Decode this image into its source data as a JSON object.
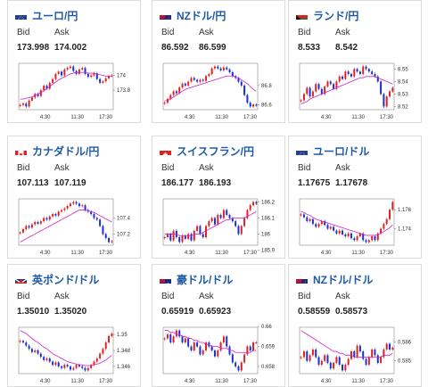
{
  "bid_label": "Bid",
  "ask_label": "Ask",
  "x_ticks": [
    "4:30",
    "11:30",
    "17:30"
  ],
  "colors": {
    "up": "#e02020",
    "down": "#1c2fd0",
    "ma": "#d020d0",
    "title": "#1f5aa6"
  },
  "cards": [
    {
      "name": "ユーロ/円",
      "flag": "eu-jp",
      "bid": "173.998",
      "ask": "174.002",
      "y_ticks": [
        "174",
        "173.8"
      ],
      "series": [
        173.6,
        173.62,
        173.58,
        173.66,
        173.7,
        173.75,
        173.72,
        173.8,
        173.86,
        173.82,
        173.9,
        173.95,
        174.02,
        174.05,
        174.0,
        174.08,
        174.1,
        174.12,
        174.06,
        174.02,
        174.08,
        174.1,
        174.02,
        173.98,
        174.0,
        174.03,
        173.95,
        173.9,
        173.92,
        173.96,
        173.99,
        174.0
      ],
      "ma": [
        173.68,
        173.68,
        173.69,
        173.7,
        173.71,
        173.73,
        173.75,
        173.77,
        173.79,
        173.82,
        173.85,
        173.88,
        173.91,
        173.94,
        173.96,
        173.98,
        174.0,
        174.02,
        174.03,
        174.04,
        174.04,
        174.04,
        174.04,
        174.03,
        174.03,
        174.03,
        174.02,
        174.01,
        174.0,
        173.99,
        173.99,
        173.99
      ]
    },
    {
      "name": "NZドル/円",
      "flag": "nz-jp",
      "bid": "86.592",
      "ask": "86.599",
      "y_ticks": [
        "86.8",
        "86.6"
      ],
      "series": [
        86.62,
        86.66,
        86.7,
        86.74,
        86.72,
        86.78,
        86.82,
        86.8,
        86.84,
        86.88,
        86.86,
        86.84,
        86.86,
        86.85,
        86.9,
        86.92,
        86.98,
        87.0,
        86.98,
        86.96,
        86.99,
        86.97,
        86.94,
        86.9,
        86.88,
        86.84,
        86.8,
        86.7,
        86.62,
        86.58,
        86.6,
        86.59
      ],
      "ma": [
        86.64,
        86.64,
        86.66,
        86.68,
        86.7,
        86.72,
        86.74,
        86.76,
        86.77,
        86.78,
        86.79,
        86.8,
        86.81,
        86.82,
        86.83,
        86.84,
        86.85,
        86.86,
        86.87,
        86.88,
        86.89,
        86.9,
        86.9,
        86.9,
        86.89,
        86.88,
        86.86,
        86.84,
        86.82,
        86.79,
        86.76,
        86.74
      ]
    },
    {
      "name": "ランド/円",
      "flag": "za-jp",
      "bid": "8.533",
      "ask": "8.542",
      "y_ticks": [
        "8.55",
        "8.54",
        "8.53",
        "8.52"
      ],
      "series": [
        8.525,
        8.53,
        8.535,
        8.528,
        8.532,
        8.538,
        8.534,
        8.53,
        8.536,
        8.54,
        8.538,
        8.534,
        8.54,
        8.544,
        8.542,
        8.548,
        8.546,
        8.544,
        8.55,
        8.548,
        8.546,
        8.552,
        8.55,
        8.548,
        8.546,
        8.544,
        8.54,
        8.53,
        8.52,
        8.528,
        8.532,
        8.535
      ],
      "ma": [
        8.522,
        8.523,
        8.524,
        8.526,
        8.527,
        8.528,
        8.529,
        8.53,
        8.531,
        8.532,
        8.533,
        8.534,
        8.535,
        8.536,
        8.537,
        8.538,
        8.539,
        8.54,
        8.541,
        8.542,
        8.543,
        8.543,
        8.544,
        8.544,
        8.544,
        8.544,
        8.543,
        8.542,
        8.541,
        8.54,
        8.539,
        8.538
      ]
    },
    {
      "name": "カナダドル/円",
      "flag": "ca-jp",
      "bid": "107.113",
      "ask": "107.119",
      "y_ticks": [
        "107.4",
        "107.2"
      ],
      "series": [
        107.22,
        107.26,
        107.3,
        107.28,
        107.32,
        107.35,
        107.33,
        107.36,
        107.4,
        107.38,
        107.42,
        107.45,
        107.43,
        107.48,
        107.5,
        107.52,
        107.55,
        107.58,
        107.6,
        107.58,
        107.55,
        107.56,
        107.5,
        107.48,
        107.45,
        107.4,
        107.38,
        107.3,
        107.2,
        107.15,
        107.1,
        107.11
      ],
      "ma": [
        107.1,
        107.12,
        107.14,
        107.16,
        107.18,
        107.2,
        107.22,
        107.24,
        107.26,
        107.28,
        107.3,
        107.32,
        107.34,
        107.36,
        107.38,
        107.4,
        107.42,
        107.44,
        107.46,
        107.48,
        107.5,
        107.5,
        107.5,
        107.49,
        107.48,
        107.47,
        107.45,
        107.43,
        107.41,
        107.39,
        107.37,
        107.35
      ]
    },
    {
      "name": "スイスフラン/円",
      "flag": "ch-jp",
      "bid": "186.177",
      "ask": "186.193",
      "y_ticks": [
        "186.2",
        "186.1",
        "186",
        "185.9"
      ],
      "series": [
        185.98,
        186.0,
        185.96,
        186.02,
        185.98,
        185.95,
        185.99,
        185.97,
        186.0,
        185.96,
        186.02,
        186.05,
        186.0,
        185.98,
        186.05,
        186.08,
        186.1,
        186.06,
        186.12,
        186.1,
        186.15,
        186.12,
        186.1,
        186.08,
        186.05,
        186.0,
        186.05,
        186.1,
        186.15,
        186.18,
        186.2,
        186.19
      ],
      "ma": [
        186.0,
        186.0,
        186.0,
        186.0,
        186.0,
        185.99,
        185.99,
        185.99,
        185.99,
        185.99,
        186.0,
        186.0,
        186.0,
        186.01,
        186.02,
        186.03,
        186.04,
        186.05,
        186.06,
        186.07,
        186.08,
        186.09,
        186.09,
        186.1,
        186.1,
        186.1,
        186.1,
        186.1,
        186.11,
        186.12,
        186.13,
        186.14
      ]
    },
    {
      "name": "ユーロ/ドル",
      "flag": "eu-us",
      "bid": "1.17675",
      "ask": "1.17678",
      "y_ticks": [
        "1.176",
        "1.174"
      ],
      "series": [
        1.1755,
        1.1752,
        1.1748,
        1.175,
        1.1745,
        1.1742,
        1.1745,
        1.1748,
        1.1744,
        1.174,
        1.1742,
        1.1738,
        1.1735,
        1.1738,
        1.1734,
        1.1732,
        1.1735,
        1.173,
        1.1728,
        1.1732,
        1.1735,
        1.1728,
        1.1726,
        1.1728,
        1.1732,
        1.1728,
        1.1735,
        1.174,
        1.1745,
        1.175,
        1.176,
        1.1768
      ],
      "ma": [
        1.1758,
        1.1757,
        1.1755,
        1.1754,
        1.1752,
        1.175,
        1.1749,
        1.1748,
        1.1747,
        1.1746,
        1.1745,
        1.1744,
        1.1743,
        1.1742,
        1.1741,
        1.174,
        1.1739,
        1.1738,
        1.1737,
        1.1736,
        1.1735,
        1.1734,
        1.1733,
        1.1733,
        1.1733,
        1.1733,
        1.1734,
        1.1735,
        1.1737,
        1.1739,
        1.1741,
        1.1744
      ]
    },
    {
      "name": "英ポンド/ドル",
      "flag": "gb-us",
      "bid": "1.35010",
      "ask": "1.35020",
      "y_ticks": [
        "1.35",
        "1.348",
        "1.346"
      ],
      "series": [
        1.3492,
        1.349,
        1.3486,
        1.3482,
        1.3478,
        1.348,
        1.3476,
        1.3472,
        1.3468,
        1.347,
        1.3466,
        1.3462,
        1.3465,
        1.346,
        1.3458,
        1.3462,
        1.346,
        1.3456,
        1.3458,
        1.3462,
        1.346,
        1.3458,
        1.3455,
        1.3458,
        1.3462,
        1.3466,
        1.347,
        1.3476,
        1.3482,
        1.349,
        1.3498,
        1.3501
      ],
      "ma": [
        1.3505,
        1.3503,
        1.3501,
        1.3498,
        1.3495,
        1.3492,
        1.349,
        1.3487,
        1.3484,
        1.3482,
        1.3479,
        1.3476,
        1.3474,
        1.3472,
        1.347,
        1.3468,
        1.3466,
        1.3465,
        1.3464,
        1.3463,
        1.3462,
        1.3462,
        1.3461,
        1.3461,
        1.3461,
        1.3462,
        1.3463,
        1.3464,
        1.3466,
        1.3468,
        1.3471,
        1.3474
      ]
    },
    {
      "name": "豪ドル/ドル",
      "flag": "au-us",
      "bid": "0.65919",
      "ask": "0.65923",
      "y_ticks": [
        "0.66",
        "0.659",
        "0.658"
      ],
      "series": [
        0.6594,
        0.6596,
        0.6592,
        0.6595,
        0.6598,
        0.6595,
        0.6592,
        0.6594,
        0.659,
        0.6588,
        0.6592,
        0.659,
        0.6586,
        0.6588,
        0.6592,
        0.659,
        0.6588,
        0.6585,
        0.6588,
        0.6592,
        0.6595,
        0.659,
        0.6586,
        0.6582,
        0.658,
        0.6578,
        0.6582,
        0.6586,
        0.659,
        0.6588,
        0.6592,
        0.6592
      ],
      "ma": [
        0.6598,
        0.6598,
        0.6597,
        0.6597,
        0.6596,
        0.6596,
        0.6595,
        0.6595,
        0.6594,
        0.6594,
        0.6593,
        0.6593,
        0.6592,
        0.6592,
        0.6591,
        0.6591,
        0.659,
        0.659,
        0.659,
        0.6589,
        0.6589,
        0.6589,
        0.6588,
        0.6588,
        0.6587,
        0.6587,
        0.6587,
        0.6587,
        0.6587,
        0.6587,
        0.6588,
        0.6588
      ]
    },
    {
      "name": "NZドル/ドル",
      "flag": "nz-us",
      "bid": "0.58559",
      "ask": "0.58573",
      "y_ticks": [
        "0.586",
        "0.585"
      ],
      "series": [
        0.5852,
        0.5855,
        0.585,
        0.5853,
        0.5856,
        0.5852,
        0.5848,
        0.585,
        0.5853,
        0.5849,
        0.5846,
        0.5849,
        0.5852,
        0.5848,
        0.5845,
        0.5848,
        0.5851,
        0.5855,
        0.5852,
        0.5858,
        0.5855,
        0.5851,
        0.5848,
        0.5852,
        0.5856,
        0.5853,
        0.5849,
        0.5852,
        0.5856,
        0.5859,
        0.5856,
        0.5857
      ],
      "ma": [
        0.5866,
        0.5865,
        0.5864,
        0.5863,
        0.5862,
        0.5861,
        0.586,
        0.5859,
        0.5858,
        0.5857,
        0.5856,
        0.5855,
        0.5855,
        0.5854,
        0.5854,
        0.5853,
        0.5853,
        0.5853,
        0.5852,
        0.5852,
        0.5852,
        0.5852,
        0.5852,
        0.5852,
        0.5852,
        0.5852,
        0.5852,
        0.5852,
        0.5853,
        0.5853,
        0.5853,
        0.5854
      ]
    }
  ]
}
